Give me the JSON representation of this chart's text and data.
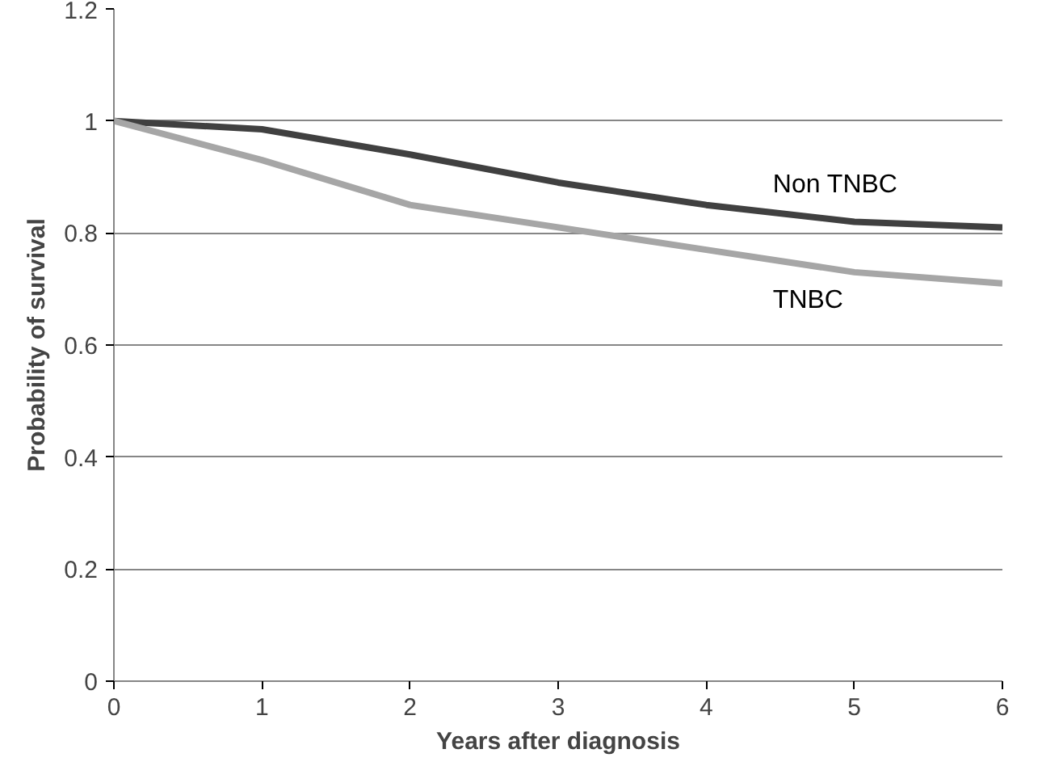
{
  "chart_data": {
    "type": "line",
    "xlabel": "Years after diagnosis",
    "ylabel": "Probability of survival",
    "x": [
      0,
      1,
      2,
      3,
      4,
      5,
      6
    ],
    "series": [
      {
        "name": "Non TNBC",
        "color": "#404040",
        "values": [
          1.0,
          0.985,
          0.94,
          0.89,
          0.85,
          0.82,
          0.81
        ]
      },
      {
        "name": "TNBC",
        "color": "#a6a6a6",
        "values": [
          1.0,
          0.93,
          0.85,
          0.81,
          0.77,
          0.73,
          0.71
        ]
      }
    ],
    "xlim": [
      0,
      6
    ],
    "ylim": [
      0,
      1.2
    ],
    "xticks": [
      0,
      1,
      2,
      3,
      4,
      5,
      6
    ],
    "yticks": [
      0,
      0.2,
      0.4,
      0.6,
      0.8,
      1,
      1.2
    ],
    "grid": "y",
    "legend": false,
    "marker": "none",
    "line_style": "solid"
  }
}
